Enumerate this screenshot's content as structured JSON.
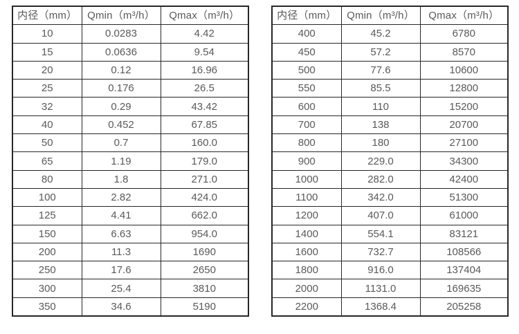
{
  "page": {
    "background_color": "#ffffff",
    "text_color": "#595959",
    "border_color": "#262626"
  },
  "tables": [
    {
      "name": "flow-range-table-small-diameters",
      "columns": [
        "内径（mm）",
        "Qmin（m³/h）",
        "Qmax（m³/h）"
      ],
      "rows": [
        [
          "10",
          "0.0283",
          "4.42"
        ],
        [
          "15",
          "0.0636",
          "9.54"
        ],
        [
          "20",
          "0.12",
          "16.96"
        ],
        [
          "25",
          "0.176",
          "26.5"
        ],
        [
          "32",
          "0.29",
          "43.42"
        ],
        [
          "40",
          "0.452",
          "67.85"
        ],
        [
          "50",
          "0.7",
          "160.0"
        ],
        [
          "65",
          "1.19",
          "179.0"
        ],
        [
          "80",
          "1.8",
          "271.0"
        ],
        [
          "100",
          "2.82",
          "424.0"
        ],
        [
          "125",
          "4.41",
          "662.0"
        ],
        [
          "150",
          "6.63",
          "954.0"
        ],
        [
          "200",
          "11.3",
          "1690"
        ],
        [
          "250",
          "17.6",
          "2650"
        ],
        [
          "300",
          "25.4",
          "3810"
        ],
        [
          "350",
          "34.6",
          "5190"
        ]
      ]
    },
    {
      "name": "flow-range-table-large-diameters",
      "columns": [
        "内径（mm）",
        "Qmin（m³/h）",
        "Qmax（m³/h）"
      ],
      "rows": [
        [
          "400",
          "45.2",
          "6780"
        ],
        [
          "450",
          "57.2",
          "8570"
        ],
        [
          "500",
          "77.6",
          "10600"
        ],
        [
          "550",
          "85.5",
          "12800"
        ],
        [
          "600",
          "110",
          "15200"
        ],
        [
          "700",
          "138",
          "20700"
        ],
        [
          "800",
          "180",
          "27100"
        ],
        [
          "900",
          "229.0",
          "34300"
        ],
        [
          "1000",
          "282.0",
          "42400"
        ],
        [
          "1100",
          "342.0",
          "51300"
        ],
        [
          "1200",
          "407.0",
          "61000"
        ],
        [
          "1400",
          "554.1",
          "83121"
        ],
        [
          "1600",
          "732.7",
          "108566"
        ],
        [
          "1800",
          "916.0",
          "137404"
        ],
        [
          "2000",
          "1131.0",
          "169635"
        ],
        [
          "2200",
          "1368.4",
          "205258"
        ]
      ]
    }
  ]
}
